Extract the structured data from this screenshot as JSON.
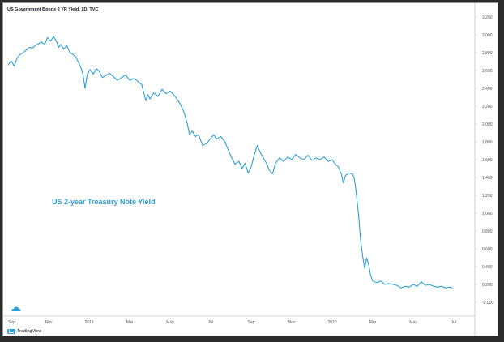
{
  "chart_title": "US Government Bonds 2 YR Yield, 1D, TVC",
  "annotation": "US 2-year Treasury Note Yield",
  "brand": "TradingView",
  "icons": {
    "brand": "tradingview-logo-icon",
    "chart": "tradingview-cloud-icon"
  },
  "colors": {
    "line": "#2e9fd8",
    "annotation": "#2e9fd8",
    "axis_text": "#555555"
  },
  "chart_data": {
    "type": "line",
    "title": "US Government Bonds 2 YR Yield, 1D, TVC",
    "xlabel": "",
    "ylabel": "",
    "ylim": [
      -0.1,
      3.3
    ],
    "y_ticks": [
      "3.200",
      "3.000",
      "2.800",
      "2.600",
      "2.400",
      "2.200",
      "2.000",
      "1.800",
      "1.600",
      "1.400",
      "1.200",
      "1.000",
      "0.800",
      "0.600",
      "0.400",
      "0.200",
      "-0.000"
    ],
    "x_ticks": [
      {
        "label": "Sep",
        "month": 0
      },
      {
        "label": "Nov",
        "month": 2
      },
      {
        "label": "2019",
        "month": 4
      },
      {
        "label": "Mar",
        "month": 6
      },
      {
        "label": "May",
        "month": 8
      },
      {
        "label": "Jul",
        "month": 10
      },
      {
        "label": "Sep",
        "month": 12
      },
      {
        "label": "Nov",
        "month": 14
      },
      {
        "label": "2020",
        "month": 16
      },
      {
        "label": "Mar",
        "month": 18
      },
      {
        "label": "May",
        "month": 20
      },
      {
        "label": "Jul",
        "month": 22
      }
    ],
    "x_range_months": [
      0,
      22.8
    ],
    "legend": "none",
    "grid": false,
    "series": [
      {
        "points": [
          [
            0.0,
            2.66
          ],
          [
            0.15,
            2.71
          ],
          [
            0.3,
            2.65
          ],
          [
            0.45,
            2.74
          ],
          [
            0.6,
            2.78
          ],
          [
            0.75,
            2.8
          ],
          [
            0.9,
            2.83
          ],
          [
            1.05,
            2.86
          ],
          [
            1.2,
            2.85
          ],
          [
            1.35,
            2.88
          ],
          [
            1.5,
            2.9
          ],
          [
            1.65,
            2.92
          ],
          [
            1.8,
            2.89
          ],
          [
            1.95,
            2.97
          ],
          [
            2.1,
            2.93
          ],
          [
            2.25,
            2.98
          ],
          [
            2.4,
            2.92
          ],
          [
            2.5,
            2.86
          ],
          [
            2.6,
            2.89
          ],
          [
            2.75,
            2.84
          ],
          [
            2.9,
            2.88
          ],
          [
            3.05,
            2.8
          ],
          [
            3.2,
            2.78
          ],
          [
            3.35,
            2.75
          ],
          [
            3.5,
            2.68
          ],
          [
            3.6,
            2.63
          ],
          [
            3.7,
            2.55
          ],
          [
            3.8,
            2.4
          ],
          [
            3.9,
            2.55
          ],
          [
            4.05,
            2.61
          ],
          [
            4.2,
            2.56
          ],
          [
            4.35,
            2.62
          ],
          [
            4.5,
            2.59
          ],
          [
            4.65,
            2.52
          ],
          [
            4.8,
            2.54
          ],
          [
            5.0,
            2.57
          ],
          [
            5.2,
            2.53
          ],
          [
            5.4,
            2.49
          ],
          [
            5.6,
            2.52
          ],
          [
            5.8,
            2.55
          ],
          [
            6.0,
            2.49
          ],
          [
            6.2,
            2.51
          ],
          [
            6.4,
            2.48
          ],
          [
            6.6,
            2.44
          ],
          [
            6.8,
            2.26
          ],
          [
            6.9,
            2.33
          ],
          [
            7.0,
            2.28
          ],
          [
            7.2,
            2.35
          ],
          [
            7.4,
            2.31
          ],
          [
            7.6,
            2.39
          ],
          [
            7.8,
            2.34
          ],
          [
            8.0,
            2.37
          ],
          [
            8.2,
            2.32
          ],
          [
            8.4,
            2.26
          ],
          [
            8.55,
            2.2
          ],
          [
            8.7,
            2.12
          ],
          [
            8.85,
            2.0
          ],
          [
            8.95,
            1.88
          ],
          [
            9.1,
            1.92
          ],
          [
            9.25,
            1.86
          ],
          [
            9.4,
            1.88
          ],
          [
            9.6,
            1.76
          ],
          [
            9.8,
            1.78
          ],
          [
            10.0,
            1.84
          ],
          [
            10.15,
            1.88
          ],
          [
            10.3,
            1.83
          ],
          [
            10.5,
            1.86
          ],
          [
            10.7,
            1.8
          ],
          [
            10.85,
            1.72
          ],
          [
            11.0,
            1.64
          ],
          [
            11.2,
            1.55
          ],
          [
            11.4,
            1.58
          ],
          [
            11.55,
            1.5
          ],
          [
            11.7,
            1.56
          ],
          [
            11.85,
            1.45
          ],
          [
            12.0,
            1.52
          ],
          [
            12.15,
            1.65
          ],
          [
            12.3,
            1.76
          ],
          [
            12.45,
            1.68
          ],
          [
            12.6,
            1.62
          ],
          [
            12.75,
            1.56
          ],
          [
            12.9,
            1.48
          ],
          [
            13.05,
            1.44
          ],
          [
            13.2,
            1.56
          ],
          [
            13.4,
            1.62
          ],
          [
            13.6,
            1.58
          ],
          [
            13.8,
            1.63
          ],
          [
            14.0,
            1.6
          ],
          [
            14.2,
            1.66
          ],
          [
            14.4,
            1.62
          ],
          [
            14.6,
            1.6
          ],
          [
            14.8,
            1.65
          ],
          [
            15.0,
            1.59
          ],
          [
            15.2,
            1.62
          ],
          [
            15.4,
            1.6
          ],
          [
            15.6,
            1.63
          ],
          [
            15.8,
            1.58
          ],
          [
            16.0,
            1.6
          ],
          [
            16.15,
            1.55
          ],
          [
            16.3,
            1.52
          ],
          [
            16.45,
            1.44
          ],
          [
            16.55,
            1.34
          ],
          [
            16.65,
            1.42
          ],
          [
            16.8,
            1.45
          ],
          [
            17.0,
            1.44
          ],
          [
            17.1,
            1.38
          ],
          [
            17.2,
            1.2
          ],
          [
            17.3,
            0.98
          ],
          [
            17.4,
            0.7
          ],
          [
            17.5,
            0.52
          ],
          [
            17.6,
            0.38
          ],
          [
            17.7,
            0.5
          ],
          [
            17.8,
            0.42
          ],
          [
            17.9,
            0.3
          ],
          [
            18.0,
            0.24
          ],
          [
            18.2,
            0.22
          ],
          [
            18.4,
            0.24
          ],
          [
            18.6,
            0.2
          ],
          [
            18.8,
            0.21
          ],
          [
            19.0,
            0.2
          ],
          [
            19.2,
            0.19
          ],
          [
            19.4,
            0.16
          ],
          [
            19.6,
            0.18
          ],
          [
            19.8,
            0.17
          ],
          [
            20.0,
            0.2
          ],
          [
            20.2,
            0.18
          ],
          [
            20.4,
            0.23
          ],
          [
            20.6,
            0.19
          ],
          [
            20.8,
            0.2
          ],
          [
            21.0,
            0.18
          ],
          [
            21.2,
            0.17
          ],
          [
            21.4,
            0.18
          ],
          [
            21.6,
            0.16
          ],
          [
            21.8,
            0.17
          ],
          [
            21.95,
            0.16
          ]
        ]
      }
    ]
  }
}
